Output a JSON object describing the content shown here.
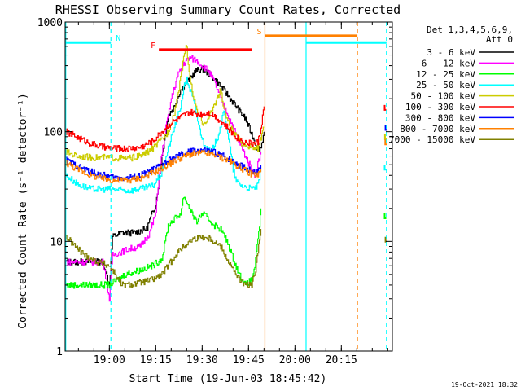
{
  "chart_data": {
    "type": "line",
    "title": "RHESSI Observing Summary Count Rates, Corrected",
    "xlabel": "Start Time (19-Jun-03 18:45:42)",
    "ylabel": "Corrected Count Rate (s⁻¹ detector⁻¹)",
    "y_scale": "log",
    "ylim": [
      1,
      1000
    ],
    "y_ticks": [
      "1",
      "10",
      "100",
      "1000"
    ],
    "x_ticks": [
      "19:00",
      "19:15",
      "19:30",
      "19:45",
      "20:00",
      "20:15"
    ],
    "x_tick_minutes": [
      60,
      75,
      90,
      105,
      120,
      135
    ],
    "x_range_minutes": [
      45.7,
      151.5
    ],
    "legend_header": [
      "Det 1,3,4,5,6,9,",
      "Att 0"
    ],
    "legend_placement": "right",
    "footer_date": "19-Oct-2021 18:32",
    "grid": false,
    "series": [
      {
        "name": "3 - 6 keV",
        "color": "#000000",
        "points": [
          [
            46,
            6.5
          ],
          [
            58,
            6.5
          ],
          [
            60,
            4
          ],
          [
            61,
            11
          ],
          [
            64,
            12
          ],
          [
            68,
            12
          ],
          [
            72,
            13
          ],
          [
            75,
            22
          ],
          [
            77,
            60
          ],
          [
            79,
            140
          ],
          [
            81,
            170
          ],
          [
            83,
            240
          ],
          [
            85,
            280
          ],
          [
            88,
            360
          ],
          [
            90,
            370
          ],
          [
            92,
            340
          ],
          [
            95,
            280
          ],
          [
            98,
            220
          ],
          [
            101,
            170
          ],
          [
            104,
            130
          ],
          [
            106,
            95
          ],
          [
            108,
            70
          ],
          [
            109,
            72
          ],
          [
            110,
            100
          ]
        ]
      },
      {
        "name": "6 - 12 keV",
        "color": "#ff00ff",
        "points": [
          [
            46,
            6.5
          ],
          [
            58,
            6.5
          ],
          [
            60,
            3
          ],
          [
            61,
            7.5
          ],
          [
            66,
            8.5
          ],
          [
            70,
            9
          ],
          [
            73,
            12
          ],
          [
            75,
            18
          ],
          [
            76,
            40
          ],
          [
            78,
            100
          ],
          [
            80,
            200
          ],
          [
            82,
            320
          ],
          [
            84,
            420
          ],
          [
            86,
            470
          ],
          [
            88,
            450
          ],
          [
            90,
            400
          ],
          [
            92,
            360
          ],
          [
            94,
            280
          ],
          [
            96,
            200
          ],
          [
            98,
            150
          ],
          [
            100,
            110
          ],
          [
            102,
            80
          ],
          [
            104,
            60
          ],
          [
            106,
            45
          ],
          [
            107,
            40
          ],
          [
            109,
            65
          ]
        ]
      },
      {
        "name": "12 - 25 keV",
        "color": "#00ff00",
        "points": [
          [
            46,
            4
          ],
          [
            56,
            4
          ],
          [
            60,
            4
          ],
          [
            65,
            5
          ],
          [
            70,
            5.5
          ],
          [
            74,
            6
          ],
          [
            77,
            7
          ],
          [
            79,
            14
          ],
          [
            81,
            16
          ],
          [
            83,
            18
          ],
          [
            84,
            26
          ],
          [
            86,
            20
          ],
          [
            88,
            15
          ],
          [
            90,
            18
          ],
          [
            92,
            16
          ],
          [
            94,
            14
          ],
          [
            96,
            13
          ],
          [
            98,
            10
          ],
          [
            100,
            7
          ],
          [
            102,
            5
          ],
          [
            104,
            4
          ],
          [
            106,
            4.5
          ],
          [
            107,
            6
          ],
          [
            108,
            10
          ],
          [
            109,
            20
          ]
        ]
      },
      {
        "name": "25 - 50 keV",
        "color": "#00ffff",
        "points": [
          [
            46,
            40
          ],
          [
            50,
            33
          ],
          [
            54,
            30
          ],
          [
            60,
            30
          ],
          [
            66,
            29
          ],
          [
            70,
            30
          ],
          [
            74,
            32
          ],
          [
            77,
            42
          ],
          [
            79,
            70
          ],
          [
            81,
            110
          ],
          [
            83,
            170
          ],
          [
            84,
            250
          ],
          [
            85,
            300
          ],
          [
            87,
            200
          ],
          [
            89,
            110
          ],
          [
            91,
            70
          ],
          [
            93,
            65
          ],
          [
            95,
            90
          ],
          [
            97,
            150
          ],
          [
            98,
            110
          ],
          [
            99,
            70
          ],
          [
            100,
            45
          ],
          [
            101,
            35
          ],
          [
            103,
            32
          ],
          [
            106,
            30
          ],
          [
            108,
            32
          ],
          [
            109,
            45
          ]
        ]
      },
      {
        "name": "50 - 100 keV",
        "color": "#cccc00",
        "points": [
          [
            46,
            65
          ],
          [
            50,
            60
          ],
          [
            54,
            58
          ],
          [
            60,
            58
          ],
          [
            66,
            57
          ],
          [
            70,
            60
          ],
          [
            74,
            70
          ],
          [
            77,
            85
          ],
          [
            79,
            100
          ],
          [
            81,
            150
          ],
          [
            83,
            300
          ],
          [
            84,
            500
          ],
          [
            85,
            600
          ],
          [
            86,
            300
          ],
          [
            88,
            160
          ],
          [
            90,
            120
          ],
          [
            92,
            130
          ],
          [
            94,
            180
          ],
          [
            96,
            240
          ],
          [
            97,
            160
          ],
          [
            99,
            110
          ],
          [
            101,
            90
          ],
          [
            103,
            78
          ],
          [
            106,
            72
          ],
          [
            108,
            70
          ],
          [
            110,
            110
          ]
        ]
      },
      {
        "name": "100 - 300 keV",
        "color": "#ff0000",
        "points": [
          [
            46,
            100
          ],
          [
            50,
            88
          ],
          [
            54,
            78
          ],
          [
            58,
            72
          ],
          [
            62,
            70
          ],
          [
            66,
            70
          ],
          [
            70,
            72
          ],
          [
            74,
            82
          ],
          [
            77,
            100
          ],
          [
            79,
            115
          ],
          [
            81,
            125
          ],
          [
            84,
            140
          ],
          [
            86,
            150
          ],
          [
            88,
            145
          ],
          [
            90,
            145
          ],
          [
            92,
            150
          ],
          [
            94,
            140
          ],
          [
            96,
            125
          ],
          [
            98,
            110
          ],
          [
            100,
            95
          ],
          [
            102,
            85
          ],
          [
            104,
            80
          ],
          [
            106,
            78
          ],
          [
            108,
            80
          ],
          [
            109,
            110
          ],
          [
            110,
            170
          ]
        ]
      },
      {
        "name": "300 - 800 keV",
        "color": "#0000ff",
        "points": [
          [
            46,
            55
          ],
          [
            50,
            48
          ],
          [
            54,
            43
          ],
          [
            58,
            40
          ],
          [
            62,
            38
          ],
          [
            66,
            38
          ],
          [
            70,
            40
          ],
          [
            74,
            45
          ],
          [
            78,
            52
          ],
          [
            82,
            60
          ],
          [
            86,
            66
          ],
          [
            90,
            68
          ],
          [
            94,
            65
          ],
          [
            98,
            58
          ],
          [
            102,
            50
          ],
          [
            105,
            45
          ],
          [
            108,
            43
          ],
          [
            109,
            50
          ]
        ]
      },
      {
        "name": "800 - 7000 keV",
        "color": "#ff8000",
        "points": [
          [
            46,
            52
          ],
          [
            50,
            45
          ],
          [
            54,
            40
          ],
          [
            58,
            37
          ],
          [
            62,
            36
          ],
          [
            66,
            36
          ],
          [
            70,
            38
          ],
          [
            74,
            42
          ],
          [
            78,
            48
          ],
          [
            82,
            56
          ],
          [
            86,
            62
          ],
          [
            90,
            64
          ],
          [
            94,
            62
          ],
          [
            98,
            55
          ],
          [
            102,
            48
          ],
          [
            105,
            42
          ],
          [
            108,
            40
          ],
          [
            109,
            46
          ]
        ]
      },
      {
        "name": "7000 - 15000 keV",
        "color": "#808000",
        "points": [
          [
            46,
            11
          ],
          [
            49,
            9
          ],
          [
            52,
            7.5
          ],
          [
            56,
            6.5
          ],
          [
            60,
            6
          ],
          [
            62,
            5
          ],
          [
            64,
            4
          ],
          [
            66,
            4
          ],
          [
            70,
            4.2
          ],
          [
            74,
            4.5
          ],
          [
            77,
            5
          ],
          [
            79,
            6
          ],
          [
            82,
            8
          ],
          [
            85,
            9.5
          ],
          [
            87,
            10.5
          ],
          [
            90,
            11
          ],
          [
            93,
            10.5
          ],
          [
            96,
            9
          ],
          [
            98,
            7
          ],
          [
            100,
            5.5
          ],
          [
            102,
            4.5
          ],
          [
            104,
            4
          ],
          [
            106,
            4
          ],
          [
            107,
            5
          ],
          [
            108,
            8
          ],
          [
            109,
            13
          ]
        ]
      }
    ],
    "right_segments": [
      {
        "color": "#ff0000",
        "x": 149.0,
        "y": 175
      },
      {
        "color": "#0000ff",
        "x": 149.3,
        "y": 115
      },
      {
        "color": "#cccc00",
        "x": 149.1,
        "y": 95
      },
      {
        "color": "#ff8000",
        "x": 149.2,
        "y": 85
      },
      {
        "color": "#00ffff",
        "x": 149.0,
        "y": 50
      },
      {
        "color": "#00ff00",
        "x": 149.0,
        "y": 18
      },
      {
        "color": "#808000",
        "x": 149.3,
        "y": 11
      }
    ],
    "state_bars": [
      {
        "label": "",
        "color": "#00ffff",
        "x0": 45.7,
        "x1": 60.5,
        "y": 650
      },
      {
        "label": "N",
        "color": "#00ffff",
        "x0": 60.5,
        "x1": 60.5,
        "y": 650
      },
      {
        "label": "F",
        "color": "#ff0000",
        "x0": 76.0,
        "x1": 106.0,
        "y": 560
      },
      {
        "label": "S",
        "color": "#ff8000",
        "x0": 110.3,
        "x1": 140.2,
        "y": 750
      },
      {
        "label": "",
        "color": "#00ffff",
        "x0": 123.6,
        "x1": 149.6,
        "y": 650
      }
    ],
    "vlines": [
      {
        "color": "#00ffff",
        "x": 45.9,
        "dashed": false
      },
      {
        "color": "#00ffff",
        "x": 60.5,
        "dashed": true
      },
      {
        "color": "#ff8000",
        "x": 110.3,
        "dashed": false
      },
      {
        "color": "#00ffff",
        "x": 123.6,
        "dashed": false
      },
      {
        "color": "#ff8000",
        "x": 140.2,
        "dashed": true
      },
      {
        "color": "#00ffff",
        "x": 149.6,
        "dashed": true
      }
    ]
  }
}
